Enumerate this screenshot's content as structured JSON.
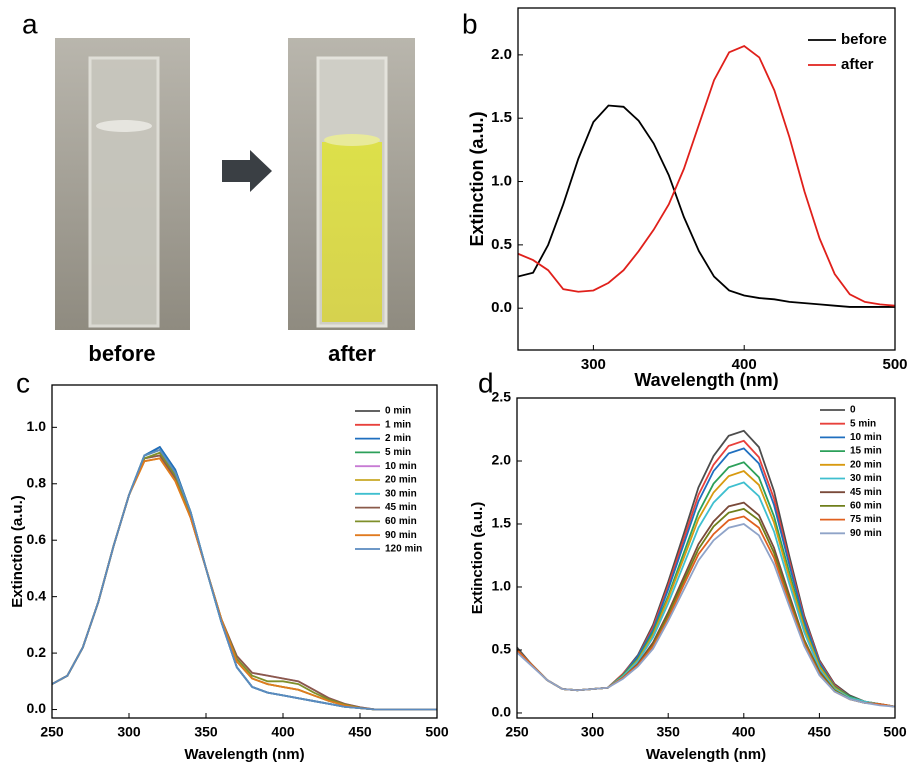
{
  "photo_panel": {
    "panel_label": "a",
    "captions": [
      "before",
      "after"
    ]
  },
  "chart_data": [
    {
      "type": "line",
      "panel_label": "b",
      "x_label": "Wavelength (nm)",
      "y_label": "Extinction (a.u.)",
      "x": [
        250,
        260,
        270,
        280,
        290,
        300,
        310,
        320,
        330,
        340,
        350,
        360,
        370,
        380,
        390,
        400,
        410,
        420,
        430,
        440,
        450,
        460,
        470,
        480,
        490,
        500
      ],
      "series": [
        {
          "name": "before",
          "color": "#000000",
          "values": [
            0.25,
            0.28,
            0.5,
            0.82,
            1.18,
            1.47,
            1.6,
            1.59,
            1.48,
            1.3,
            1.05,
            0.72,
            0.45,
            0.25,
            0.14,
            0.1,
            0.08,
            0.07,
            0.05,
            0.04,
            0.03,
            0.02,
            0.01,
            0.01,
            0.01,
            0.01
          ]
        },
        {
          "name": "after",
          "color": "#e0201b",
          "values": [
            0.43,
            0.38,
            0.3,
            0.15,
            0.13,
            0.14,
            0.2,
            0.3,
            0.45,
            0.62,
            0.82,
            1.1,
            1.45,
            1.8,
            2.02,
            2.07,
            1.98,
            1.72,
            1.35,
            0.92,
            0.55,
            0.27,
            0.11,
            0.05,
            0.03,
            0.02
          ]
        }
      ],
      "xlim": [
        250,
        500
      ],
      "xticks": [
        300,
        400,
        500
      ],
      "ylim": [
        -0.33,
        2.37
      ],
      "yticks": [
        {
          "value": 0,
          "label": "0.0"
        },
        0.5,
        {
          "value": 1,
          "label": "1.0"
        },
        1.5,
        {
          "value": 2,
          "label": "2.0"
        }
      ],
      "legend": "upper right"
    },
    {
      "type": "line",
      "panel_label": "c",
      "x_label": "Wavelength (nm)",
      "y_label": "Extinction (a.u.)",
      "x": [
        250,
        260,
        270,
        280,
        290,
        300,
        310,
        320,
        330,
        340,
        350,
        360,
        370,
        380,
        390,
        400,
        410,
        420,
        430,
        440,
        450,
        460,
        470,
        480,
        490,
        500
      ],
      "series": [
        {
          "name": "0 min",
          "color": "#4d4d4d",
          "values": [
            0.09,
            0.12,
            0.22,
            0.38,
            0.58,
            0.76,
            0.9,
            0.93,
            0.85,
            0.7,
            0.5,
            0.31,
            0.15,
            0.08,
            0.06,
            0.05,
            0.04,
            0.03,
            0.02,
            0.01,
            0.005,
            0,
            0,
            0,
            0,
            0
          ]
        },
        {
          "name": "1 min",
          "color": "#e8413c",
          "values": [
            0.09,
            0.12,
            0.22,
            0.38,
            0.58,
            0.76,
            0.9,
            0.92,
            0.84,
            0.7,
            0.5,
            0.31,
            0.15,
            0.08,
            0.06,
            0.05,
            0.04,
            0.03,
            0.02,
            0.01,
            0.005,
            0,
            0,
            0,
            0,
            0
          ]
        },
        {
          "name": "2 min",
          "color": "#1f6fbf",
          "values": [
            0.09,
            0.12,
            0.22,
            0.38,
            0.58,
            0.76,
            0.9,
            0.93,
            0.85,
            0.7,
            0.5,
            0.31,
            0.15,
            0.08,
            0.06,
            0.05,
            0.04,
            0.03,
            0.02,
            0.01,
            0.005,
            0,
            0,
            0,
            0,
            0
          ]
        },
        {
          "name": "5 min",
          "color": "#2ca05a",
          "values": [
            0.09,
            0.12,
            0.22,
            0.38,
            0.58,
            0.76,
            0.9,
            0.92,
            0.84,
            0.7,
            0.5,
            0.31,
            0.17,
            0.11,
            0.09,
            0.08,
            0.07,
            0.05,
            0.03,
            0.015,
            0.005,
            0,
            0,
            0,
            0,
            0
          ]
        },
        {
          "name": "10 min",
          "color": "#c77bd4",
          "values": [
            0.09,
            0.12,
            0.22,
            0.38,
            0.58,
            0.76,
            0.89,
            0.9,
            0.82,
            0.68,
            0.5,
            0.32,
            0.19,
            0.13,
            0.12,
            0.11,
            0.1,
            0.07,
            0.04,
            0.02,
            0.008,
            0,
            0,
            0,
            0,
            0
          ]
        },
        {
          "name": "20 min",
          "color": "#c8a826",
          "values": [
            0.09,
            0.12,
            0.22,
            0.38,
            0.58,
            0.76,
            0.88,
            0.89,
            0.81,
            0.68,
            0.5,
            0.32,
            0.17,
            0.11,
            0.09,
            0.08,
            0.07,
            0.05,
            0.03,
            0.015,
            0.005,
            0,
            0,
            0,
            0,
            0
          ]
        },
        {
          "name": "30 min",
          "color": "#3fbfcf",
          "values": [
            0.09,
            0.12,
            0.22,
            0.38,
            0.58,
            0.76,
            0.9,
            0.92,
            0.84,
            0.7,
            0.5,
            0.31,
            0.15,
            0.08,
            0.06,
            0.05,
            0.04,
            0.03,
            0.02,
            0.01,
            0.005,
            0,
            0,
            0,
            0,
            0
          ]
        },
        {
          "name": "45 min",
          "color": "#8a5a4a",
          "values": [
            0.09,
            0.12,
            0.22,
            0.38,
            0.58,
            0.76,
            0.89,
            0.9,
            0.82,
            0.68,
            0.5,
            0.32,
            0.19,
            0.13,
            0.12,
            0.11,
            0.1,
            0.07,
            0.04,
            0.02,
            0.008,
            0,
            0,
            0,
            0,
            0
          ]
        },
        {
          "name": "60 min",
          "color": "#7f8f2a",
          "values": [
            0.09,
            0.12,
            0.22,
            0.38,
            0.58,
            0.76,
            0.89,
            0.91,
            0.83,
            0.69,
            0.5,
            0.32,
            0.18,
            0.12,
            0.1,
            0.1,
            0.09,
            0.06,
            0.035,
            0.018,
            0.006,
            0,
            0,
            0,
            0,
            0
          ]
        },
        {
          "name": "90 min",
          "color": "#e07a1f",
          "values": [
            0.09,
            0.12,
            0.22,
            0.38,
            0.58,
            0.76,
            0.88,
            0.89,
            0.81,
            0.68,
            0.5,
            0.32,
            0.17,
            0.11,
            0.09,
            0.08,
            0.07,
            0.05,
            0.03,
            0.015,
            0.005,
            0,
            0,
            0,
            0,
            0
          ]
        },
        {
          "name": "120 min",
          "color": "#5a8abf",
          "values": [
            0.09,
            0.12,
            0.22,
            0.38,
            0.58,
            0.76,
            0.9,
            0.92,
            0.84,
            0.7,
            0.5,
            0.31,
            0.15,
            0.08,
            0.06,
            0.05,
            0.04,
            0.03,
            0.02,
            0.01,
            0.005,
            0,
            0,
            0,
            0,
            0
          ]
        }
      ],
      "xlim": [
        250,
        500
      ],
      "xticks": [
        250,
        300,
        350,
        400,
        450,
        500
      ],
      "ylim": [
        -0.03,
        1.15
      ],
      "yticks": [
        {
          "value": 0,
          "label": "0.0"
        },
        0.2,
        0.4,
        0.6,
        0.8,
        {
          "value": 1,
          "label": "1.0"
        }
      ],
      "legend": "upper right"
    },
    {
      "type": "line",
      "panel_label": "d",
      "x_label": "Wavelength (nm)",
      "y_label": "Extinction (a.u.)",
      "x": [
        250,
        260,
        270,
        280,
        290,
        300,
        310,
        320,
        330,
        340,
        350,
        360,
        370,
        380,
        390,
        400,
        410,
        420,
        430,
        440,
        450,
        460,
        470,
        480,
        490,
        500
      ],
      "series": [
        {
          "name": "0",
          "color": "#4d4d4d",
          "values": [
            0.52,
            0.38,
            0.26,
            0.19,
            0.18,
            0.19,
            0.2,
            0.31,
            0.46,
            0.7,
            1.04,
            1.41,
            1.79,
            2.04,
            2.2,
            2.24,
            2.11,
            1.76,
            1.25,
            0.77,
            0.42,
            0.23,
            0.14,
            0.09,
            0.07,
            0.05
          ]
        },
        {
          "name": "5 min",
          "color": "#e8413c",
          "values": [
            0.5,
            0.38,
            0.26,
            0.19,
            0.18,
            0.19,
            0.2,
            0.31,
            0.45,
            0.68,
            1.01,
            1.37,
            1.73,
            1.97,
            2.12,
            2.16,
            2.03,
            1.7,
            1.21,
            0.75,
            0.41,
            0.22,
            0.13,
            0.09,
            0.07,
            0.05
          ]
        },
        {
          "name": "10 min",
          "color": "#1f6fbf",
          "values": [
            0.5,
            0.38,
            0.26,
            0.19,
            0.18,
            0.19,
            0.2,
            0.3,
            0.45,
            0.66,
            0.98,
            1.33,
            1.68,
            1.92,
            2.06,
            2.1,
            1.98,
            1.65,
            1.18,
            0.73,
            0.4,
            0.21,
            0.13,
            0.09,
            0.07,
            0.05
          ]
        },
        {
          "name": "15 min",
          "color": "#2ca05a",
          "values": [
            0.5,
            0.38,
            0.26,
            0.19,
            0.18,
            0.19,
            0.2,
            0.3,
            0.43,
            0.64,
            0.93,
            1.26,
            1.59,
            1.82,
            1.95,
            1.99,
            1.87,
            1.56,
            1.12,
            0.69,
            0.38,
            0.21,
            0.13,
            0.09,
            0.07,
            0.05
          ]
        },
        {
          "name": "20 min",
          "color": "#d89a10",
          "values": [
            0.5,
            0.38,
            0.26,
            0.19,
            0.18,
            0.19,
            0.2,
            0.29,
            0.42,
            0.62,
            0.91,
            1.22,
            1.54,
            1.75,
            1.88,
            1.92,
            1.81,
            1.51,
            1.08,
            0.67,
            0.37,
            0.2,
            0.12,
            0.09,
            0.07,
            0.05
          ]
        },
        {
          "name": "30 min",
          "color": "#3fbfcf",
          "values": [
            0.5,
            0.38,
            0.26,
            0.19,
            0.18,
            0.19,
            0.2,
            0.29,
            0.41,
            0.6,
            0.87,
            1.17,
            1.47,
            1.67,
            1.79,
            1.83,
            1.72,
            1.44,
            1.03,
            0.64,
            0.35,
            0.19,
            0.12,
            0.09,
            0.07,
            0.05
          ]
        },
        {
          "name": "45 min",
          "color": "#7a4a3a",
          "values": [
            0.5,
            0.38,
            0.26,
            0.19,
            0.18,
            0.19,
            0.2,
            0.28,
            0.39,
            0.56,
            0.8,
            1.07,
            1.34,
            1.52,
            1.64,
            1.67,
            1.57,
            1.31,
            0.94,
            0.58,
            0.33,
            0.18,
            0.11,
            0.08,
            0.07,
            0.05
          ]
        },
        {
          "name": "60 min",
          "color": "#6f7f1a",
          "values": [
            0.5,
            0.38,
            0.26,
            0.19,
            0.18,
            0.19,
            0.2,
            0.28,
            0.38,
            0.54,
            0.78,
            1.04,
            1.3,
            1.48,
            1.59,
            1.62,
            1.53,
            1.27,
            0.91,
            0.57,
            0.32,
            0.18,
            0.11,
            0.08,
            0.07,
            0.05
          ]
        },
        {
          "name": "75 min",
          "color": "#e0601f",
          "values": [
            0.5,
            0.38,
            0.26,
            0.19,
            0.18,
            0.19,
            0.2,
            0.28,
            0.38,
            0.53,
            0.75,
            1.01,
            1.26,
            1.42,
            1.53,
            1.56,
            1.47,
            1.23,
            0.88,
            0.55,
            0.31,
            0.17,
            0.11,
            0.08,
            0.07,
            0.05
          ]
        },
        {
          "name": "90 min",
          "color": "#8fa3c8",
          "values": [
            0.48,
            0.37,
            0.26,
            0.19,
            0.18,
            0.19,
            0.2,
            0.27,
            0.37,
            0.51,
            0.73,
            0.97,
            1.21,
            1.37,
            1.47,
            1.5,
            1.41,
            1.18,
            0.85,
            0.53,
            0.3,
            0.17,
            0.11,
            0.08,
            0.06,
            0.05
          ]
        }
      ],
      "xlim": [
        250,
        500
      ],
      "xticks": [
        250,
        300,
        350,
        400,
        450,
        500
      ],
      "ylim": [
        -0.04,
        2.5
      ],
      "yticks": [
        {
          "value": 0,
          "label": "0.0"
        },
        0.5,
        {
          "value": 1,
          "label": "1.0"
        },
        1.5,
        {
          "value": 2,
          "label": "2.0"
        },
        2.5
      ],
      "legend": "upper right"
    }
  ]
}
